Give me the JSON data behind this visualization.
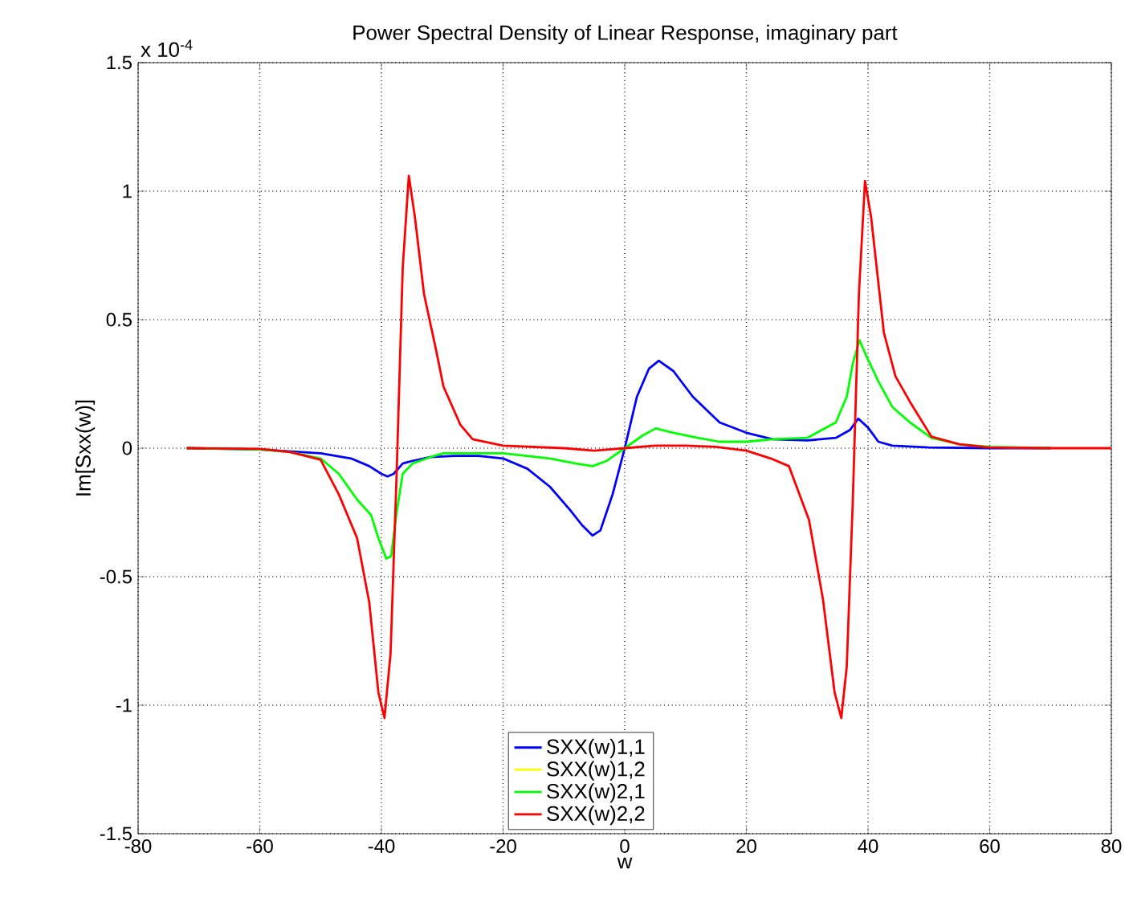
{
  "chart_data": {
    "type": "line",
    "title": "Power Spectral Density of Linear Response, imaginary part",
    "xlabel": "w",
    "ylabel": "Im[Sxx(w)]",
    "annotations": [
      "x 10$^{-4}$"
    ],
    "xlim": [
      -80,
      80
    ],
    "xticks": [
      -80,
      -60,
      -40,
      -20,
      0,
      20,
      40,
      60,
      80
    ],
    "ylim": [
      -1.5,
      1.5
    ],
    "yticks": [
      -1.5,
      -1,
      -0.5,
      0,
      0.5,
      1,
      1.5
    ],
    "grid": true,
    "legend": "bottom",
    "line_style": "solid",
    "marker": "none",
    "series": [
      {
        "name": "SXX(w)1,1",
        "color": "#0000ff",
        "x": [
          -72,
          -60,
          -50,
          -45,
          -42,
          -40,
          -39,
          -38,
          -36.5,
          -35,
          -32,
          -28,
          -24,
          -20,
          -16,
          -12.3,
          -9,
          -7,
          -5.3,
          -4,
          -2,
          0,
          2,
          4,
          5.6,
          8,
          11.2,
          15.6,
          20,
          24.3,
          30,
          34.7,
          37,
          38.4,
          40,
          41.7,
          44,
          50,
          60,
          70
        ],
        "values": [
          0,
          -0.005,
          -0.02,
          -0.04,
          -0.07,
          -0.1,
          -0.11,
          -0.1,
          -0.06,
          -0.05,
          -0.035,
          -0.03,
          -0.03,
          -0.04,
          -0.08,
          -0.15,
          -0.24,
          -0.3,
          -0.34,
          -0.32,
          -0.18,
          0,
          0.2,
          0.31,
          0.34,
          0.3,
          0.2,
          0.1,
          0.06,
          0.035,
          0.03,
          0.04,
          0.07,
          0.115,
          0.08,
          0.025,
          0.01,
          0.003,
          0,
          0
        ]
      },
      {
        "name": "SXX(w)1,2",
        "color": "#ffff00"
      },
      {
        "name": "SXX(w)2,1",
        "color": "#00ff00",
        "x": [
          -72,
          -60,
          -55,
          -50,
          -47,
          -44,
          -41.7,
          -40.5,
          -39.2,
          -38.4,
          -37.5,
          -36.5,
          -34.9,
          -32,
          -29.8,
          -25,
          -20,
          -12.3,
          -8,
          -5.3,
          -3,
          0,
          3,
          5.1,
          8,
          12,
          15.6,
          20,
          24.3,
          30,
          34.7,
          36.5,
          37.5,
          38.6,
          39.7,
          41.7,
          44,
          46.9,
          50.4,
          55,
          60,
          70
        ],
        "values": [
          0,
          -0.005,
          -0.015,
          -0.04,
          -0.1,
          -0.2,
          -0.26,
          -0.35,
          -0.43,
          -0.42,
          -0.25,
          -0.1,
          -0.06,
          -0.035,
          -0.02,
          -0.02,
          -0.02,
          -0.04,
          -0.06,
          -0.07,
          -0.05,
          0,
          0.05,
          0.077,
          0.06,
          0.04,
          0.025,
          0.025,
          0.035,
          0.04,
          0.1,
          0.2,
          0.33,
          0.42,
          0.36,
          0.26,
          0.16,
          0.1,
          0.04,
          0.015,
          0.005,
          0
        ]
      },
      {
        "name": "SXX(w)2,2",
        "color": "#ff0000",
        "x": [
          -72,
          -60,
          -55,
          -50,
          -47,
          -44,
          -42,
          -40.5,
          -39.5,
          -38.5,
          -37.5,
          -36.5,
          -35.5,
          -34.5,
          -33,
          -31,
          -29.8,
          -27,
          -25,
          -20,
          -10,
          -5,
          0,
          5,
          10,
          15,
          20,
          24,
          27,
          30.3,
          32.6,
          34.5,
          35.6,
          36.5,
          37.5,
          38.5,
          39.5,
          40.5,
          42.6,
          44.5,
          46.9,
          50.4,
          55,
          60,
          70,
          80
        ],
        "values": [
          0,
          -0.003,
          -0.015,
          -0.045,
          -0.18,
          -0.35,
          -0.6,
          -0.95,
          -1.05,
          -0.8,
          -0.1,
          0.7,
          1.06,
          0.9,
          0.6,
          0.38,
          0.24,
          0.09,
          0.035,
          0.01,
          0,
          -0.01,
          0,
          0.01,
          0.01,
          0.005,
          -0.01,
          -0.04,
          -0.07,
          -0.28,
          -0.59,
          -0.95,
          -1.05,
          -0.85,
          -0.2,
          0.6,
          1.04,
          0.9,
          0.45,
          0.28,
          0.18,
          0.045,
          0.015,
          0.003,
          0,
          0
        ]
      }
    ]
  }
}
